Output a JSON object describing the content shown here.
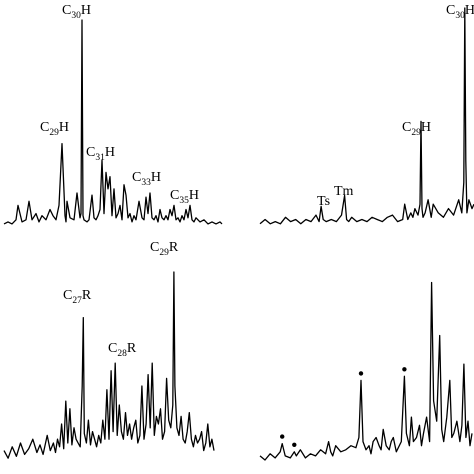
{
  "chart_data": [
    {
      "type": "line",
      "panel": "top-left",
      "peak_labels": [
        {
          "base": "C",
          "sub": "30",
          "tail": "H"
        },
        {
          "base": "C",
          "sub": "29",
          "tail": "H"
        },
        {
          "base": "C",
          "sub": "31",
          "tail": "H"
        },
        {
          "base": "C",
          "sub": "33",
          "tail": "H"
        },
        {
          "base": "C",
          "sub": "35",
          "tail": "H"
        }
      ],
      "x": [
        0,
        4,
        8,
        12,
        14,
        18,
        22,
        25,
        28,
        32,
        35,
        38,
        42,
        46,
        49,
        52,
        55,
        58,
        61,
        62,
        63,
        66,
        70,
        73,
        76,
        77,
        78,
        79,
        80,
        83,
        85,
        88,
        90,
        92,
        94,
        96,
        98,
        100,
        102,
        104,
        106,
        108,
        110,
        112,
        114,
        116,
        118,
        120,
        122,
        124,
        126,
        128,
        130,
        132,
        135,
        138,
        140,
        142,
        144,
        146,
        148,
        150,
        152,
        154,
        156,
        158,
        160,
        162,
        164,
        166,
        168,
        170,
        172,
        174,
        176,
        178,
        180,
        182,
        184,
        186,
        188,
        190,
        192,
        196,
        200,
        204,
        208,
        212,
        216,
        218
      ],
      "y": [
        0.01,
        0.02,
        0.01,
        0.03,
        0.1,
        0.02,
        0.03,
        0.12,
        0.03,
        0.06,
        0.02,
        0.05,
        0.03,
        0.08,
        0.05,
        0.03,
        0.1,
        0.4,
        0.05,
        0.02,
        0.12,
        0.04,
        0.03,
        0.16,
        0.04,
        0.06,
        1.0,
        0.05,
        0.03,
        0.02,
        0.03,
        0.15,
        0.04,
        0.03,
        0.05,
        0.08,
        0.32,
        0.06,
        0.26,
        0.18,
        0.24,
        0.05,
        0.18,
        0.04,
        0.06,
        0.1,
        0.03,
        0.2,
        0.15,
        0.04,
        0.06,
        0.02,
        0.05,
        0.03,
        0.12,
        0.04,
        0.03,
        0.14,
        0.06,
        0.16,
        0.04,
        0.03,
        0.05,
        0.02,
        0.08,
        0.04,
        0.03,
        0.05,
        0.03,
        0.08,
        0.05,
        0.1,
        0.03,
        0.04,
        0.02,
        0.05,
        0.03,
        0.08,
        0.04,
        0.1,
        0.03,
        0.02,
        0.04,
        0.02,
        0.03,
        0.01,
        0.02,
        0.01,
        0.02,
        0.01
      ],
      "ylim": [
        0,
        1.0
      ]
    },
    {
      "type": "line",
      "panel": "top-right",
      "peak_labels": [
        {
          "base": "Ts",
          "sub": "",
          "tail": ""
        },
        {
          "base": "Tm",
          "sub": "",
          "tail": ""
        },
        {
          "base": "C",
          "sub": "29",
          "tail": "H"
        },
        {
          "base": "C",
          "sub": "30",
          "tail": "H"
        }
      ],
      "x": [
        0,
        5,
        10,
        15,
        20,
        25,
        30,
        35,
        40,
        45,
        50,
        55,
        58,
        60,
        62,
        65,
        70,
        75,
        80,
        83,
        85,
        87,
        90,
        95,
        100,
        105,
        110,
        115,
        120,
        125,
        130,
        135,
        140,
        142,
        145,
        148,
        150,
        152,
        155,
        157,
        158,
        159,
        160,
        162,
        165,
        168,
        170,
        175,
        180,
        185,
        190,
        195,
        198,
        200,
        201,
        202,
        203,
        205,
        208,
        210
      ],
      "y": [
        0.01,
        0.03,
        0.01,
        0.02,
        0.01,
        0.04,
        0.02,
        0.03,
        0.01,
        0.03,
        0.02,
        0.05,
        0.02,
        0.09,
        0.03,
        0.02,
        0.03,
        0.02,
        0.05,
        0.14,
        0.03,
        0.02,
        0.04,
        0.02,
        0.03,
        0.02,
        0.04,
        0.03,
        0.02,
        0.04,
        0.05,
        0.02,
        0.03,
        0.1,
        0.03,
        0.06,
        0.04,
        0.08,
        0.05,
        0.1,
        0.48,
        0.08,
        0.04,
        0.06,
        0.12,
        0.04,
        0.1,
        0.06,
        0.04,
        0.08,
        0.05,
        0.12,
        0.06,
        0.2,
        1.0,
        0.3,
        0.06,
        0.12,
        0.08,
        0.1
      ],
      "ylim": [
        0,
        1.0
      ]
    },
    {
      "type": "line",
      "panel": "bottom-left",
      "peak_labels": [
        {
          "base": "C",
          "sub": "27",
          "tail": "R"
        },
        {
          "base": "C",
          "sub": "28",
          "tail": "R"
        },
        {
          "base": "C",
          "sub": "29",
          "tail": "R"
        }
      ],
      "x": [
        0,
        4,
        8,
        12,
        16,
        20,
        24,
        28,
        32,
        35,
        38,
        42,
        45,
        48,
        50,
        52,
        54,
        56,
        58,
        60,
        62,
        64,
        66,
        68,
        70,
        72,
        74,
        76,
        77,
        78,
        80,
        82,
        84,
        86,
        88,
        90,
        92,
        94,
        96,
        98,
        100,
        102,
        104,
        106,
        108,
        110,
        112,
        114,
        116,
        118,
        120,
        122,
        124,
        126,
        128,
        130,
        132,
        134,
        136,
        138,
        140,
        142,
        144,
        146,
        148,
        150,
        152,
        154,
        156,
        158,
        160,
        162,
        164,
        165,
        166,
        168,
        170,
        172,
        174,
        176,
        178,
        180,
        182,
        184,
        186,
        188,
        190,
        192,
        194,
        196,
        198,
        200,
        202,
        204
      ],
      "y": [
        0.06,
        0.02,
        0.08,
        0.03,
        0.1,
        0.04,
        0.07,
        0.12,
        0.05,
        0.09,
        0.04,
        0.14,
        0.06,
        0.1,
        0.05,
        0.12,
        0.08,
        0.2,
        0.07,
        0.32,
        0.1,
        0.28,
        0.09,
        0.18,
        0.12,
        0.1,
        0.08,
        0.4,
        0.76,
        0.15,
        0.1,
        0.22,
        0.09,
        0.16,
        0.12,
        0.08,
        0.14,
        0.1,
        0.22,
        0.12,
        0.38,
        0.12,
        0.48,
        0.16,
        0.52,
        0.14,
        0.3,
        0.16,
        0.12,
        0.26,
        0.14,
        0.2,
        0.12,
        0.18,
        0.22,
        0.1,
        0.14,
        0.4,
        0.12,
        0.2,
        0.46,
        0.18,
        0.52,
        0.14,
        0.24,
        0.2,
        0.28,
        0.12,
        0.16,
        0.44,
        0.22,
        0.18,
        0.3,
        1.0,
        0.4,
        0.18,
        0.14,
        0.24,
        0.12,
        0.1,
        0.16,
        0.26,
        0.12,
        0.08,
        0.14,
        0.1,
        0.12,
        0.16,
        0.06,
        0.1,
        0.2,
        0.08,
        0.12,
        0.06
      ],
      "ylim": [
        0,
        1.0
      ]
    },
    {
      "type": "line",
      "panel": "bottom-right",
      "markers_x": [
        22,
        34,
        100,
        143
      ],
      "x": [
        0,
        5,
        10,
        15,
        20,
        22,
        25,
        30,
        34,
        36,
        40,
        45,
        50,
        55,
        60,
        65,
        68,
        70,
        72,
        75,
        80,
        85,
        90,
        95,
        98,
        100,
        102,
        105,
        108,
        110,
        112,
        115,
        118,
        120,
        122,
        125,
        128,
        130,
        132,
        135,
        140,
        143,
        145,
        148,
        150,
        152,
        155,
        158,
        160,
        162,
        165,
        168,
        170,
        172,
        175,
        178,
        180,
        182,
        185,
        188,
        190,
        192,
        195,
        198,
        200,
        202,
        204,
        206,
        208,
        210
      ],
      "y": [
        0.03,
        0.01,
        0.04,
        0.02,
        0.05,
        0.09,
        0.03,
        0.02,
        0.05,
        0.03,
        0.06,
        0.02,
        0.04,
        0.03,
        0.06,
        0.04,
        0.1,
        0.05,
        0.03,
        0.08,
        0.05,
        0.06,
        0.08,
        0.07,
        0.12,
        0.4,
        0.1,
        0.06,
        0.08,
        0.04,
        0.1,
        0.12,
        0.08,
        0.06,
        0.16,
        0.08,
        0.06,
        0.1,
        0.12,
        0.05,
        0.1,
        0.42,
        0.14,
        0.08,
        0.22,
        0.1,
        0.12,
        0.18,
        0.08,
        0.14,
        0.22,
        0.1,
        0.88,
        0.3,
        0.2,
        0.62,
        0.16,
        0.1,
        0.22,
        0.4,
        0.12,
        0.14,
        0.2,
        0.1,
        0.18,
        0.48,
        0.12,
        0.2,
        0.08,
        0.14
      ],
      "ylim": [
        0,
        1.0
      ]
    }
  ]
}
